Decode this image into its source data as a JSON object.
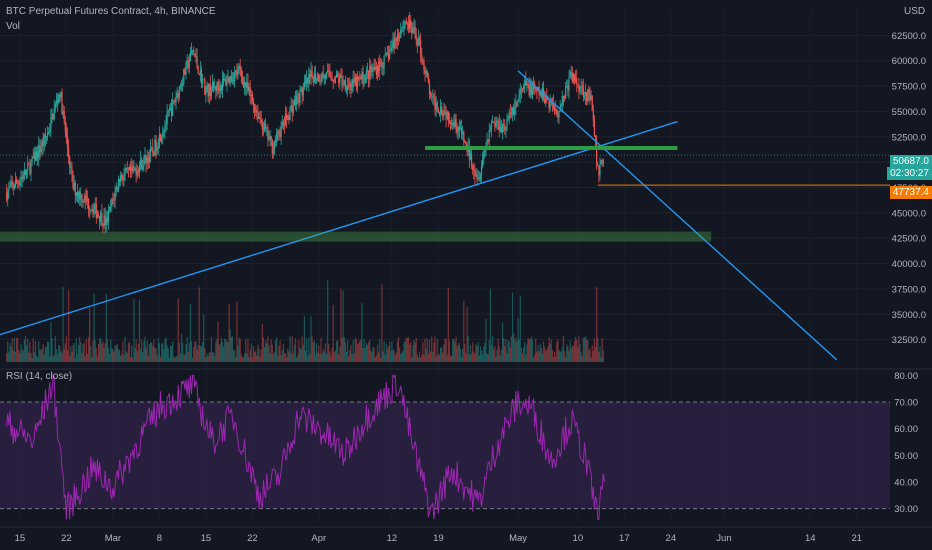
{
  "header": {
    "symbol_title": "BTC Perpetual Futures Contract, 4h, BINANCE",
    "volume_label": "Vol",
    "rsi_label": "RSI (14, close)",
    "currency": "USD"
  },
  "price_tags": {
    "last_price": "50687.0",
    "countdown": "02:30:27",
    "line_price": "47737.4"
  },
  "colors": {
    "background": "#131722",
    "up_candle": "#26a69a",
    "down_candle": "#ef5350",
    "trendline": "#2196f3",
    "support_zone": "#4caf50",
    "resistance_line": "#2e9e44",
    "orange_line": "#f57c00",
    "rsi_line": "#9c27b0",
    "rsi_band": "#3a2553",
    "last_price_tag": "#26a69a",
    "orange_tag": "#f57c00"
  },
  "chart_data": [
    {
      "type": "candlestick",
      "title": "BTC Perpetual Futures Contract, 4h, BINANCE",
      "ylabel": "USD",
      "ylim": [
        30000,
        65000
      ],
      "y_ticks": [
        "32500.0",
        "35000.0",
        "37500.0",
        "40000.0",
        "42500.0",
        "45000.0",
        "47500.0",
        "50000.0",
        "52500.0",
        "55000.0",
        "57500.0",
        "60000.0",
        "62500.0"
      ],
      "x_ticks": [
        "15",
        "22",
        "Mar",
        "8",
        "15",
        "22",
        "Apr",
        "12",
        "19",
        "May",
        "10",
        "17",
        "24",
        "Jun",
        "14",
        "21"
      ],
      "close_path": [
        {
          "x": "2021-02-13",
          "y": 47000
        },
        {
          "x": "2021-02-16",
          "y": 49000
        },
        {
          "x": "2021-02-19",
          "y": 52500
        },
        {
          "x": "2021-02-21",
          "y": 57000
        },
        {
          "x": "2021-02-23",
          "y": 47500
        },
        {
          "x": "2021-02-26",
          "y": 45500
        },
        {
          "x": "2021-02-28",
          "y": 44000
        },
        {
          "x": "2021-03-02",
          "y": 48500
        },
        {
          "x": "2021-03-04",
          "y": 49000
        },
        {
          "x": "2021-03-07",
          "y": 51000
        },
        {
          "x": "2021-03-10",
          "y": 55500
        },
        {
          "x": "2021-03-13",
          "y": 61000
        },
        {
          "x": "2021-03-15",
          "y": 57000
        },
        {
          "x": "2021-03-17",
          "y": 57500
        },
        {
          "x": "2021-03-20",
          "y": 59000
        },
        {
          "x": "2021-03-23",
          "y": 54500
        },
        {
          "x": "2021-03-25",
          "y": 51500
        },
        {
          "x": "2021-03-28",
          "y": 55500
        },
        {
          "x": "2021-03-31",
          "y": 58500
        },
        {
          "x": "2021-04-03",
          "y": 58500
        },
        {
          "x": "2021-04-06",
          "y": 57500
        },
        {
          "x": "2021-04-09",
          "y": 59000
        },
        {
          "x": "2021-04-11",
          "y": 60000
        },
        {
          "x": "2021-04-14",
          "y": 64000
        },
        {
          "x": "2021-04-16",
          "y": 62000
        },
        {
          "x": "2021-04-18",
          "y": 56000
        },
        {
          "x": "2021-04-20",
          "y": 55000
        },
        {
          "x": "2021-04-22",
          "y": 53500
        },
        {
          "x": "2021-04-25",
          "y": 48500
        },
        {
          "x": "2021-04-27",
          "y": 54000
        },
        {
          "x": "2021-04-29",
          "y": 53500
        },
        {
          "x": "2021-05-02",
          "y": 57500
        },
        {
          "x": "2021-05-05",
          "y": 56500
        },
        {
          "x": "2021-05-07",
          "y": 55000
        },
        {
          "x": "2021-05-09",
          "y": 58500
        },
        {
          "x": "2021-05-11",
          "y": 57000
        },
        {
          "x": "2021-05-12",
          "y": 56000
        },
        {
          "x": "2021-05-13",
          "y": 49000
        },
        {
          "x": "2021-05-14",
          "y": 50700
        }
      ],
      "annotations": [
        {
          "type": "trendline",
          "from": {
            "x": "2021-02-12",
            "y": 33000
          },
          "to": {
            "x": "2021-05-25",
            "y": 54000
          }
        },
        {
          "type": "trendline",
          "from": {
            "x": "2021-05-01",
            "y": 59000
          },
          "to": {
            "x": "2021-06-18",
            "y": 30500
          }
        },
        {
          "type": "zone",
          "x_from": "2021-02-12",
          "x_to": "2021-05-30",
          "y_from": 42200,
          "y_to": 43100
        },
        {
          "type": "hline",
          "x_from": "2021-04-17",
          "x_to": "2021-05-25",
          "y": 51400
        },
        {
          "type": "hline",
          "x_from": "2021-05-13",
          "x_to": "2021-06-21",
          "y": 47737.4
        }
      ],
      "last_price": 50687.0
    },
    {
      "type": "line",
      "title": "RSI (14, close)",
      "ylim": [
        25,
        82
      ],
      "y_ticks": [
        "30.00",
        "40.00",
        "50.00",
        "60.00",
        "70.00",
        "80.00"
      ],
      "band": [
        30,
        70
      ],
      "path": [
        {
          "x": "2021-02-13",
          "y": 62
        },
        {
          "x": "2021-02-17",
          "y": 55
        },
        {
          "x": "2021-02-20",
          "y": 78
        },
        {
          "x": "2021-02-22",
          "y": 29
        },
        {
          "x": "2021-02-26",
          "y": 45
        },
        {
          "x": "2021-03-01",
          "y": 38
        },
        {
          "x": "2021-03-06",
          "y": 60
        },
        {
          "x": "2021-03-08",
          "y": 68
        },
        {
          "x": "2021-03-13",
          "y": 76
        },
        {
          "x": "2021-03-16",
          "y": 55
        },
        {
          "x": "2021-03-19",
          "y": 65
        },
        {
          "x": "2021-03-23",
          "y": 35
        },
        {
          "x": "2021-03-26",
          "y": 42
        },
        {
          "x": "2021-03-29",
          "y": 65
        },
        {
          "x": "2021-04-01",
          "y": 60
        },
        {
          "x": "2021-04-05",
          "y": 50
        },
        {
          "x": "2021-04-08",
          "y": 64
        },
        {
          "x": "2021-04-13",
          "y": 78
        },
        {
          "x": "2021-04-15",
          "y": 55
        },
        {
          "x": "2021-04-18",
          "y": 28
        },
        {
          "x": "2021-04-21",
          "y": 45
        },
        {
          "x": "2021-04-25",
          "y": 32
        },
        {
          "x": "2021-04-28",
          "y": 55
        },
        {
          "x": "2021-05-01",
          "y": 70
        },
        {
          "x": "2021-05-03",
          "y": 68
        },
        {
          "x": "2021-05-06",
          "y": 48
        },
        {
          "x": "2021-05-09",
          "y": 63
        },
        {
          "x": "2021-05-11",
          "y": 50
        },
        {
          "x": "2021-05-13",
          "y": 27
        },
        {
          "x": "2021-05-14",
          "y": 40
        }
      ]
    }
  ]
}
